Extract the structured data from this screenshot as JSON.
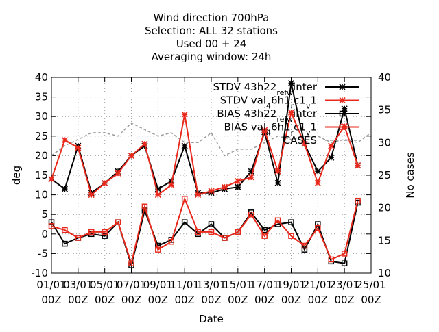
{
  "chart_data": {
    "type": "line",
    "title_lines": [
      "Wind direction 700hPa",
      "Selection: ALL      32 stations",
      "Used  00  + 24",
      "Averaging window: 24h"
    ],
    "xlabel": "Date",
    "ylabel": "deg",
    "y2label": "No cases",
    "ylim": [
      -10,
      40
    ],
    "y2lim": [
      10,
      40
    ],
    "yticks": [
      -10,
      -5,
      0,
      5,
      10,
      15,
      20,
      25,
      30,
      35,
      40
    ],
    "y2ticks": [
      10,
      15,
      20,
      25,
      30,
      35,
      40
    ],
    "xlim": [
      0,
      24
    ],
    "xticks": [
      {
        "x": 0,
        "line1": "01/01",
        "line2": "00Z"
      },
      {
        "x": 2,
        "line1": "03/01",
        "line2": "00Z"
      },
      {
        "x": 4,
        "line1": "05/01",
        "line2": "00Z"
      },
      {
        "x": 6,
        "line1": "07/01",
        "line2": "00Z"
      },
      {
        "x": 8,
        "line1": "09/01",
        "line2": "00Z"
      },
      {
        "x": 10,
        "line1": "11/01",
        "line2": "00Z"
      },
      {
        "x": 12,
        "line1": "13/01",
        "line2": "00Z"
      },
      {
        "x": 14,
        "line1": "15/01",
        "line2": "00Z"
      },
      {
        "x": 16,
        "line1": "17/01",
        "line2": "00Z"
      },
      {
        "x": 18,
        "line1": "19/01",
        "line2": "00Z"
      },
      {
        "x": 20,
        "line1": "21/01",
        "line2": "00Z"
      },
      {
        "x": 22,
        "line1": "23/01",
        "line2": "00Z"
      },
      {
        "x": 24,
        "line1": "25/01",
        "line2": "00Z"
      }
    ],
    "grid": true,
    "legend_position": "top-right",
    "x": [
      1,
      2,
      3,
      4,
      5,
      6,
      7,
      8,
      9,
      10,
      11,
      12,
      13,
      14,
      15,
      16,
      17,
      18,
      19,
      20,
      21,
      22,
      23,
      24,
      25
    ],
    "series": [
      {
        "name": "STDV 43h22_ref_winter",
        "legend_parts": [
          [
            "STDV 43h22",
            ""
          ],
          [
            "ref",
            "sub"
          ],
          [
            "w",
            "sub"
          ],
          [
            "inter",
            ""
          ]
        ],
        "color": "#000000",
        "marker": "star",
        "values": [
          14.0,
          11.5,
          22.5,
          10.5,
          13.0,
          16.0,
          20.0,
          22.5,
          11.5,
          13.5,
          22.5,
          10.5,
          10.5,
          11.5,
          12.0,
          16.0,
          26.0,
          13.0,
          38.5,
          23.0,
          16.0,
          19.5,
          32.0,
          17.5,
          null
        ],
        "axis": "y"
      },
      {
        "name": "STDV val_46h1_rc1_v1",
        "legend_parts": [
          [
            "STDV val",
            ""
          ],
          [
            "4",
            "sub"
          ],
          [
            "6h1",
            ""
          ],
          [
            "r",
            "sub"
          ],
          [
            "c1",
            ""
          ],
          [
            "v",
            "sub"
          ],
          [
            "1",
            ""
          ]
        ],
        "color": "#e8291c",
        "marker": "star",
        "values": [
          14.0,
          24.0,
          22.0,
          10.0,
          13.0,
          15.5,
          20.0,
          23.0,
          10.0,
          12.5,
          30.5,
          10.0,
          11.0,
          12.0,
          13.5,
          14.5,
          26.5,
          16.0,
          31.0,
          23.0,
          13.0,
          22.5,
          27.5,
          17.5,
          null
        ],
        "axis": "y"
      },
      {
        "name": "BIAS 43h22_ref_winter",
        "legend_parts": [
          [
            "BIAS 43h22",
            ""
          ],
          [
            "ref",
            "sub"
          ],
          [
            "w",
            "sub"
          ],
          [
            "inter",
            ""
          ]
        ],
        "color": "#000000",
        "marker": "square",
        "values": [
          3.0,
          -2.5,
          -1.0,
          0.0,
          -0.5,
          3.0,
          -8.0,
          6.0,
          -3.0,
          -1.5,
          3.0,
          0.0,
          2.5,
          -1.0,
          0.5,
          5.5,
          1.0,
          2.5,
          3.0,
          -4.0,
          2.5,
          -7.0,
          -7.5,
          8.0,
          null
        ],
        "axis": "y"
      },
      {
        "name": "BIAS val_46h1_rc1_v1",
        "legend_parts": [
          [
            "BIAS val",
            ""
          ],
          [
            "4",
            "sub"
          ],
          [
            "6h1",
            ""
          ],
          [
            "r",
            "sub"
          ],
          [
            "c1",
            ""
          ],
          [
            "v",
            "sub"
          ],
          [
            "1",
            ""
          ]
        ],
        "color": "#e8291c",
        "marker": "square",
        "values": [
          2.0,
          1.0,
          -1.0,
          0.5,
          0.5,
          3.0,
          -7.5,
          7.0,
          -4.0,
          -2.0,
          9.0,
          0.5,
          0.5,
          -1.0,
          0.5,
          5.0,
          -0.5,
          3.5,
          -0.5,
          -3.0,
          1.5,
          -6.5,
          -5.0,
          8.5,
          null
        ],
        "axis": "y"
      },
      {
        "name": "CASES",
        "color": "#9a9a9a",
        "marker": "none",
        "dashed": true,
        "values": [
          28.0,
          29.5,
          30.5,
          31.5,
          31.5,
          31.0,
          33.0,
          32.0,
          31.0,
          31.5,
          30.0,
          30.0,
          31.5,
          28.0,
          29.0,
          29.0,
          30.0,
          31.0,
          30.5,
          31.0,
          31.0,
          30.0,
          30.5,
          30.0,
          31.5
        ],
        "axis": "y2"
      }
    ]
  }
}
